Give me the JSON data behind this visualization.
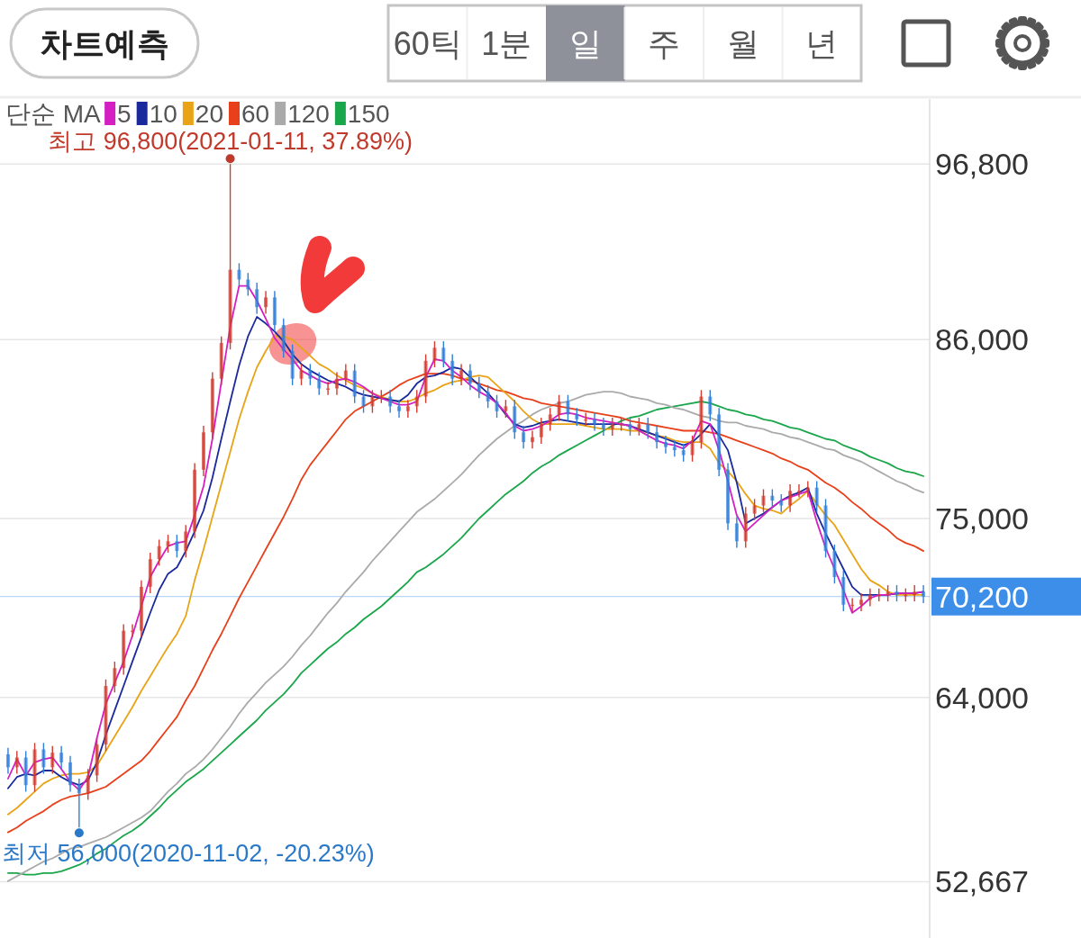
{
  "chart_data": {
    "type": "candlestick",
    "annotations": [
      {
        "text": "최고 96,800(2021-01-11, 37.89%)",
        "y": 96800
      },
      "최저 56,000(2020-11-02, -20.23%)",
      "차트예측",
      "60틱",
      "1분",
      "일",
      "주",
      "월",
      "년"
    ],
    "legend_title": "단순 MA",
    "legend": "top left",
    "grid": "y",
    "tick_labels": "y",
    "ylim": [
      49200,
      100800
    ],
    "yticks": [
      {
        "value": 52667,
        "label": "52,667"
      },
      {
        "value": 64000,
        "label": "64,000"
      },
      {
        "value": 75000,
        "label": "75,000"
      },
      {
        "value": 86000,
        "label": "86,000"
      },
      {
        "value": 96800,
        "label": "96,800"
      }
    ],
    "ref_lines": [
      {
        "axis": "y",
        "value": 70200,
        "label": "70,200",
        "color": "#3d8ee8"
      }
    ],
    "categories": [
      null,
      null,
      null,
      null,
      null,
      null,
      null,
      null,
      null,
      null,
      null,
      null,
      null,
      null,
      null,
      null,
      null,
      null,
      null,
      null,
      null,
      null,
      null,
      null,
      null,
      null,
      null,
      null,
      null,
      null,
      null,
      null,
      null,
      null,
      null,
      null,
      null,
      null,
      null,
      null,
      null,
      null,
      null,
      null,
      null,
      null,
      null,
      null,
      null,
      null,
      null,
      null,
      null,
      null,
      null,
      null,
      null,
      null,
      null,
      null,
      null,
      null,
      null,
      null,
      null,
      null,
      null,
      null,
      null,
      null,
      null,
      null,
      null,
      null,
      null,
      null,
      null,
      null,
      null,
      null,
      null,
      null,
      null,
      null,
      null,
      null,
      null,
      null,
      null,
      null,
      null,
      null,
      null,
      null,
      null,
      null,
      null,
      null,
      null,
      null,
      null,
      null,
      null,
      null
    ],
    "ohlc": [
      [
        60500,
        60900,
        59300,
        59700
      ],
      [
        59700,
        60700,
        59300,
        60300
      ],
      [
        60300,
        60700,
        58200,
        58600
      ],
      [
        58600,
        61200,
        58200,
        60800
      ],
      [
        60800,
        61200,
        59300,
        59700
      ],
      [
        59700,
        61000,
        59300,
        60600
      ],
      [
        60600,
        61000,
        59600,
        60000
      ],
      [
        60000,
        60400,
        58200,
        58600
      ],
      [
        58600,
        59000,
        56000,
        58100
      ],
      [
        58100,
        59600,
        57700,
        59200
      ],
      [
        59200,
        61500,
        58800,
        61100
      ],
      [
        61100,
        65100,
        60700,
        64700
      ],
      [
        64700,
        66200,
        64300,
        65800
      ],
      [
        65800,
        68500,
        65400,
        68100
      ],
      [
        68100,
        68500,
        67700,
        68100
      ],
      [
        68100,
        71200,
        67700,
        70800
      ],
      [
        70800,
        72900,
        70400,
        72500
      ],
      [
        72500,
        73700,
        72100,
        73300
      ],
      [
        73300,
        74000,
        72900,
        73600
      ],
      [
        73600,
        74000,
        72600,
        73000
      ],
      [
        73000,
        74600,
        72600,
        74200
      ],
      [
        74200,
        78400,
        73800,
        78000
      ],
      [
        78000,
        80700,
        77600,
        80300
      ],
      [
        80300,
        84000,
        79900,
        83600
      ],
      [
        83600,
        86200,
        83200,
        85800
      ],
      [
        85800,
        96800,
        85400,
        90300
      ],
      [
        90300,
        90700,
        89300,
        89700
      ],
      [
        89700,
        90100,
        88700,
        89100
      ],
      [
        89100,
        89500,
        87600,
        88000
      ],
      [
        88000,
        89000,
        87600,
        88600
      ],
      [
        88600,
        89000,
        86500,
        86900
      ],
      [
        86900,
        87300,
        84900,
        85300
      ],
      [
        85300,
        85700,
        83200,
        83600
      ],
      [
        83600,
        84500,
        83200,
        84100
      ],
      [
        84100,
        84500,
        83200,
        83600
      ],
      [
        83600,
        84000,
        82600,
        83000
      ],
      [
        83000,
        83400,
        82600,
        83000
      ],
      [
        83000,
        84000,
        82600,
        83600
      ],
      [
        83600,
        84500,
        83200,
        84100
      ],
      [
        84100,
        84500,
        82100,
        82500
      ],
      [
        82500,
        82900,
        81500,
        81900
      ],
      [
        81900,
        82900,
        81500,
        82500
      ],
      [
        82500,
        82900,
        82100,
        82500
      ],
      [
        82500,
        82900,
        81500,
        81900
      ],
      [
        81900,
        82300,
        81200,
        81600
      ],
      [
        81600,
        82300,
        81200,
        81900
      ],
      [
        81900,
        82900,
        81500,
        82500
      ],
      [
        82500,
        85100,
        82100,
        84700
      ],
      [
        84700,
        85900,
        84300,
        85500
      ],
      [
        85500,
        85900,
        84300,
        84700
      ],
      [
        84700,
        85100,
        83200,
        83600
      ],
      [
        83600,
        84500,
        83200,
        84100
      ],
      [
        84100,
        84500,
        82900,
        83300
      ],
      [
        83300,
        83700,
        82400,
        82800
      ],
      [
        82800,
        83200,
        81800,
        82200
      ],
      [
        82200,
        82600,
        81200,
        81600
      ],
      [
        81600,
        82300,
        81200,
        81900
      ],
      [
        81900,
        82300,
        79900,
        80300
      ],
      [
        80300,
        80700,
        79300,
        79700
      ],
      [
        79700,
        80400,
        79300,
        80000
      ],
      [
        80000,
        81200,
        79600,
        80800
      ],
      [
        80800,
        81800,
        80400,
        81400
      ],
      [
        81400,
        82600,
        81000,
        82200
      ],
      [
        82200,
        82600,
        81000,
        81400
      ],
      [
        81400,
        81800,
        80700,
        81100
      ],
      [
        81100,
        81500,
        80700,
        81100
      ],
      [
        81100,
        81500,
        80400,
        80800
      ],
      [
        80800,
        81200,
        80100,
        80500
      ],
      [
        80500,
        81200,
        80100,
        80800
      ],
      [
        80800,
        81200,
        80400,
        80800
      ],
      [
        80800,
        81200,
        80100,
        80500
      ],
      [
        80500,
        81200,
        80100,
        80800
      ],
      [
        80800,
        81200,
        79900,
        80300
      ],
      [
        80300,
        80700,
        79300,
        79700
      ],
      [
        79700,
        80100,
        79000,
        79400
      ],
      [
        79400,
        79800,
        78800,
        79200
      ],
      [
        79200,
        79600,
        78500,
        78900
      ],
      [
        78900,
        80100,
        78500,
        79700
      ],
      [
        79700,
        82900,
        79300,
        82500
      ],
      [
        82500,
        82900,
        81000,
        81400
      ],
      [
        81400,
        81800,
        77600,
        78000
      ],
      [
        78000,
        78400,
        74300,
        74700
      ],
      [
        74700,
        75100,
        73200,
        73600
      ],
      [
        73600,
        75700,
        73200,
        75300
      ],
      [
        75300,
        76200,
        74900,
        75800
      ],
      [
        75800,
        76800,
        75400,
        76400
      ],
      [
        76400,
        76800,
        75700,
        76100
      ],
      [
        76100,
        76500,
        75400,
        75800
      ],
      [
        75800,
        77100,
        75400,
        76700
      ],
      [
        76700,
        77100,
        76300,
        76700
      ],
      [
        76700,
        77300,
        76300,
        76900
      ],
      [
        76900,
        77300,
        75400,
        75800
      ],
      [
        75800,
        76200,
        72600,
        73000
      ],
      [
        73000,
        73400,
        71000,
        71400
      ],
      [
        71400,
        71800,
        69300,
        69700
      ],
      [
        69700,
        70100,
        69300,
        69700
      ],
      [
        69700,
        70400,
        69300,
        70000
      ],
      [
        70000,
        70700,
        69600,
        70300
      ],
      [
        70300,
        70700,
        69900,
        70300
      ],
      [
        70300,
        70900,
        69900,
        70500
      ],
      [
        70500,
        70900,
        69900,
        70300
      ],
      [
        70300,
        70700,
        69900,
        70300
      ],
      [
        70300,
        70900,
        69900,
        70500
      ],
      [
        70500,
        70900,
        69800,
        70200
      ]
    ],
    "series": [
      {
        "name": "5",
        "type": "line",
        "color": "#d41fc3",
        "values": [
          59000,
          60200,
          59200,
          60000,
          60200,
          60300,
          59600,
          58800,
          58300,
          59100,
          61500,
          63600,
          64900,
          66200,
          67800,
          69600,
          71400,
          72400,
          73300,
          73500,
          73600,
          75200,
          77000,
          79900,
          83400,
          86800,
          89300,
          89300,
          88400,
          87300,
          86100,
          85400,
          84800,
          84100,
          83800,
          83500,
          83300,
          83500,
          83600,
          83400,
          83100,
          82700,
          82400,
          82200,
          82000,
          82000,
          82200,
          83700,
          84800,
          84700,
          84100,
          83700,
          83200,
          82800,
          82500,
          82100,
          81500,
          80700,
          80400,
          80500,
          80700,
          81000,
          81400,
          81500,
          81400,
          81200,
          81100,
          81000,
          80900,
          80800,
          80700,
          80400,
          80100,
          79800,
          79600,
          79500,
          79300,
          79800,
          81000,
          80800,
          79200,
          77300,
          75200,
          74200,
          74700,
          75200,
          75700,
          76100,
          76300,
          76500,
          76700,
          74800,
          73200,
          71900,
          70600,
          69200,
          69600,
          70100,
          70300,
          70300,
          70400,
          70400,
          70400,
          70500
        ]
      },
      {
        "name": "10",
        "type": "line",
        "color": "#1a2a9c",
        "values": [
          58400,
          59100,
          59300,
          59200,
          59500,
          59500,
          59100,
          58800,
          58600,
          58900,
          60000,
          61700,
          63200,
          64700,
          66200,
          67700,
          69200,
          70600,
          71600,
          72000,
          73000,
          74200,
          75500,
          77500,
          79900,
          82200,
          84400,
          86200,
          87400,
          87000,
          86500,
          85900,
          85100,
          84500,
          84100,
          83800,
          83500,
          83300,
          83100,
          82800,
          82600,
          82500,
          82400,
          82300,
          82200,
          82600,
          83300,
          83700,
          83800,
          84000,
          84300,
          84200,
          83700,
          83200,
          82700,
          82100,
          81400,
          80800,
          80600,
          80700,
          80900,
          81000,
          81100,
          81000,
          80900,
          80800,
          80800,
          80800,
          80800,
          80800,
          80700,
          80500,
          80300,
          80100,
          79900,
          79700,
          79500,
          79700,
          80200,
          80800,
          80100,
          79200,
          77200,
          74700,
          75000,
          75300,
          75700,
          76100,
          76400,
          76600,
          76900,
          75300,
          74100,
          73000,
          71900,
          70800,
          70300,
          70300,
          70300,
          70300,
          70400,
          70400,
          70400,
          70500
        ]
      },
      {
        "name": "20",
        "type": "line",
        "color": "#e8a317",
        "values": [
          56800,
          57200,
          57700,
          58200,
          58700,
          59000,
          59200,
          59300,
          59300,
          59400,
          59800,
          60700,
          61600,
          62500,
          63400,
          64400,
          65300,
          66200,
          67100,
          67900,
          69000,
          71200,
          73100,
          75100,
          77100,
          79100,
          81100,
          82800,
          84300,
          85300,
          86200,
          86200,
          86000,
          85500,
          85000,
          84500,
          84200,
          83800,
          83500,
          83200,
          83000,
          82700,
          82500,
          82300,
          82200,
          82200,
          82400,
          82700,
          82900,
          83200,
          83400,
          83500,
          83700,
          83800,
          83700,
          83200,
          82700,
          82200,
          81600,
          81100,
          80800,
          80800,
          80800,
          80800,
          80800,
          80700,
          80600,
          80500,
          80500,
          80500,
          80400,
          80400,
          80300,
          80100,
          80000,
          79800,
          79700,
          79700,
          79700,
          79300,
          78400,
          77900,
          77300,
          76500,
          75800,
          75600,
          75500,
          75300,
          75800,
          76200,
          76700,
          75900,
          75200,
          74600,
          73700,
          72800,
          71900,
          71200,
          70900,
          70500,
          70300,
          70300,
          70300,
          70300
        ]
      },
      {
        "name": "60",
        "type": "line",
        "color": "#e8401a",
        "values": [
          55700,
          56000,
          56400,
          56700,
          57000,
          57400,
          57700,
          57900,
          58000,
          58100,
          58300,
          58500,
          58900,
          59300,
          59700,
          60100,
          60700,
          61400,
          62100,
          62800,
          63800,
          64700,
          65800,
          66900,
          67900,
          69000,
          70100,
          71100,
          72100,
          73100,
          74100,
          75100,
          76200,
          77400,
          78300,
          79000,
          79700,
          80400,
          81100,
          81600,
          81900,
          82200,
          82500,
          82800,
          83200,
          83500,
          83700,
          83900,
          83900,
          83900,
          83800,
          83600,
          83500,
          83300,
          83100,
          82900,
          82800,
          82600,
          82400,
          82300,
          82100,
          82000,
          81900,
          81800,
          81700,
          81600,
          81500,
          81400,
          81300,
          81200,
          81000,
          80900,
          80800,
          80700,
          80600,
          80500,
          80400,
          80400,
          80400,
          80300,
          80200,
          80000,
          79800,
          79600,
          79400,
          79200,
          79000,
          78700,
          78500,
          78200,
          78000,
          77600,
          77200,
          76900,
          76500,
          76000,
          75600,
          75100,
          74700,
          74300,
          73800,
          73500,
          73300,
          73000
        ]
      },
      {
        "name": "120",
        "type": "line",
        "color": "#aaaaaa",
        "values": [
          52700,
          53000,
          53300,
          53600,
          53900,
          54100,
          54400,
          54700,
          54800,
          55000,
          55200,
          55400,
          55700,
          56000,
          56300,
          56600,
          57000,
          57600,
          58200,
          58700,
          59300,
          59700,
          60200,
          60800,
          61500,
          62200,
          63000,
          63700,
          64300,
          64900,
          65400,
          65900,
          66500,
          67200,
          67800,
          68500,
          69200,
          69800,
          70500,
          71100,
          71700,
          72400,
          73000,
          73600,
          74200,
          74800,
          75400,
          75800,
          76200,
          76700,
          77200,
          77700,
          78300,
          78900,
          79400,
          79900,
          80300,
          80700,
          81000,
          81400,
          81700,
          81900,
          82100,
          82200,
          82400,
          82600,
          82700,
          82800,
          82800,
          82700,
          82500,
          82400,
          82300,
          82100,
          82000,
          81800,
          81700,
          81500,
          81300,
          81200,
          81000,
          80900,
          80900,
          80700,
          80600,
          80500,
          80300,
          80200,
          80000,
          79900,
          79700,
          79500,
          79300,
          79200,
          78900,
          78700,
          78500,
          78200,
          77900,
          77600,
          77300,
          77100,
          76800,
          76600
        ]
      },
      {
        "name": "150",
        "type": "line",
        "color": "#1aa64a",
        "values": [
          53200,
          53200,
          53100,
          53100,
          53200,
          53200,
          53300,
          53500,
          53700,
          54000,
          54400,
          54700,
          55100,
          55500,
          55800,
          56200,
          56700,
          57200,
          57800,
          58300,
          58800,
          59200,
          59600,
          60100,
          60600,
          61100,
          61600,
          62100,
          62600,
          63200,
          63700,
          64200,
          64800,
          65500,
          66000,
          66500,
          67000,
          67400,
          67900,
          68300,
          68800,
          69200,
          69600,
          70100,
          70600,
          71100,
          71700,
          72000,
          72400,
          72800,
          73300,
          73800,
          74400,
          75000,
          75500,
          76000,
          76500,
          76900,
          77300,
          77800,
          78200,
          78500,
          78900,
          79200,
          79500,
          79800,
          80100,
          80400,
          80700,
          81000,
          81200,
          81300,
          81500,
          81700,
          81800,
          81900,
          82000,
          82100,
          82200,
          82100,
          81900,
          81700,
          81600,
          81400,
          81300,
          81100,
          81000,
          80800,
          80600,
          80500,
          80300,
          80100,
          79900,
          79800,
          79500,
          79300,
          79100,
          78800,
          78600,
          78400,
          78100,
          77900,
          77800,
          77600
        ]
      }
    ]
  }
}
